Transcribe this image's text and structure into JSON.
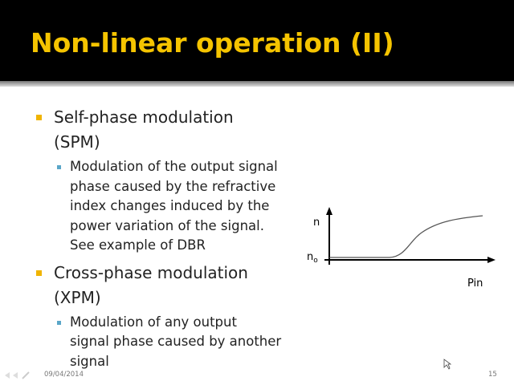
{
  "header": {
    "title": "Non-linear operation (II)"
  },
  "bullets": [
    {
      "lines": [
        "Self-phase modulation",
        "(SPM)"
      ],
      "sub": [
        {
          "lines": [
            "Modulation of the output signal",
            "phase caused by the refractive",
            "index changes induced by the",
            "power variation of the signal.",
            "See example of DBR"
          ]
        }
      ]
    },
    {
      "lines": [
        "Cross-phase modulation",
        "(XPM)"
      ],
      "sub": [
        {
          "lines": [
            "Modulation of any output",
            "signal phase caused by another",
            "signal"
          ]
        }
      ]
    }
  ],
  "diagram": {
    "y_label": "n",
    "base_label": "n",
    "base_label_sub": "o",
    "x_label": "Pin"
  },
  "footer": {
    "date": "09/04/2014",
    "page": "15"
  }
}
